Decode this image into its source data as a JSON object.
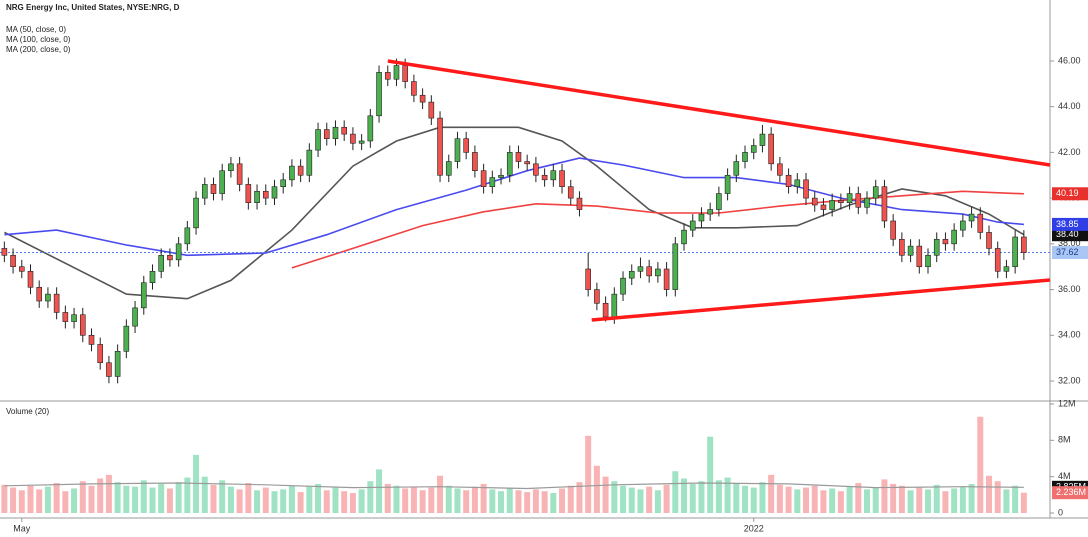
{
  "chart_data": {
    "type": "candlestick",
    "title": "NRG Energy Inc, United States, NYSE:NRG, D",
    "xlim": [
      -0.5,
      120
    ],
    "xticks": [
      {
        "value": 2,
        "label": "May"
      },
      {
        "value": 86,
        "label": "2022"
      }
    ],
    "ylim": [
      31.17,
      48.01
    ],
    "yticks": [
      {
        "value": 32,
        "label": "32.00"
      },
      {
        "value": 34,
        "label": "34.00"
      },
      {
        "value": 36,
        "label": "36.00"
      },
      {
        "value": 38,
        "label": "38.00"
      },
      {
        "value": 40,
        "label": "40.00"
      },
      {
        "value": 42,
        "label": "42.00"
      },
      {
        "value": 44,
        "label": "44.00"
      },
      {
        "value": 46,
        "label": "46.00"
      }
    ],
    "up_color": "#4caf50",
    "down_color": "#ef5350",
    "last_price_color": "#3f6fe8",
    "ohlc": [
      [
        37.8,
        38.1,
        37.2,
        37.5
      ],
      [
        37.5,
        37.8,
        36.7,
        37.0
      ],
      [
        37.0,
        37.3,
        36.5,
        36.8
      ],
      [
        36.8,
        37.1,
        35.8,
        36.1
      ],
      [
        36.1,
        36.4,
        35.2,
        35.5
      ],
      [
        35.5,
        36.1,
        35.2,
        35.8
      ],
      [
        35.8,
        36.1,
        34.7,
        35.0
      ],
      [
        35.0,
        35.3,
        34.3,
        34.6
      ],
      [
        34.6,
        35.2,
        34.3,
        34.9
      ],
      [
        34.9,
        35.2,
        33.7,
        34.0
      ],
      [
        34.0,
        34.3,
        33.3,
        33.6
      ],
      [
        33.6,
        33.9,
        32.5,
        32.8
      ],
      [
        32.8,
        33.1,
        31.9,
        32.2
      ],
      [
        32.2,
        33.6,
        31.9,
        33.3
      ],
      [
        33.3,
        34.7,
        33.0,
        34.4
      ],
      [
        34.4,
        35.5,
        34.1,
        35.2
      ],
      [
        35.2,
        36.6,
        34.9,
        36.3
      ],
      [
        36.3,
        37.1,
        36.0,
        36.8
      ],
      [
        36.8,
        37.8,
        36.5,
        37.5
      ],
      [
        37.5,
        37.8,
        37.0,
        37.3
      ],
      [
        37.3,
        38.3,
        37.0,
        38.0
      ],
      [
        38.0,
        39.0,
        37.7,
        38.7
      ],
      [
        38.7,
        40.3,
        38.4,
        40.0
      ],
      [
        40.0,
        40.9,
        39.7,
        40.6
      ],
      [
        40.6,
        40.9,
        39.9,
        40.2
      ],
      [
        40.2,
        41.5,
        39.9,
        41.2
      ],
      [
        41.2,
        41.8,
        40.9,
        41.5
      ],
      [
        41.5,
        41.8,
        40.3,
        40.6
      ],
      [
        40.6,
        40.9,
        39.5,
        39.8
      ],
      [
        39.8,
        40.6,
        39.5,
        40.3
      ],
      [
        40.3,
        40.6,
        39.7,
        40.0
      ],
      [
        40.0,
        40.8,
        39.7,
        40.5
      ],
      [
        40.5,
        41.1,
        40.2,
        40.8
      ],
      [
        40.8,
        41.7,
        40.5,
        41.4
      ],
      [
        41.4,
        41.7,
        40.7,
        41.0
      ],
      [
        41.0,
        42.4,
        40.7,
        42.1
      ],
      [
        42.1,
        43.3,
        41.8,
        43.0
      ],
      [
        43.0,
        43.3,
        42.3,
        42.6
      ],
      [
        42.6,
        43.4,
        42.3,
        43.1
      ],
      [
        43.1,
        43.4,
        42.5,
        42.8
      ],
      [
        42.8,
        43.1,
        42.1,
        42.4
      ],
      [
        42.4,
        42.8,
        42.1,
        42.5
      ],
      [
        42.5,
        43.9,
        42.2,
        43.6
      ],
      [
        43.6,
        45.8,
        43.3,
        45.5
      ],
      [
        45.5,
        45.8,
        44.9,
        45.2
      ],
      [
        45.2,
        46.1,
        44.9,
        45.8
      ],
      [
        45.8,
        46.1,
        44.8,
        45.1
      ],
      [
        45.1,
        45.4,
        44.2,
        44.5
      ],
      [
        44.5,
        44.8,
        43.9,
        44.2
      ],
      [
        44.2,
        44.5,
        43.2,
        43.5
      ],
      [
        43.5,
        43.8,
        40.7,
        41.0
      ],
      [
        41.0,
        41.9,
        40.7,
        41.6
      ],
      [
        41.6,
        42.9,
        41.3,
        42.6
      ],
      [
        42.6,
        42.9,
        41.7,
        42.0
      ],
      [
        42.0,
        42.3,
        40.9,
        41.2
      ],
      [
        41.2,
        41.5,
        40.2,
        40.5
      ],
      [
        40.5,
        41.2,
        40.2,
        40.9
      ],
      [
        40.9,
        41.3,
        40.6,
        41.0
      ],
      [
        41.0,
        42.3,
        40.7,
        42.0
      ],
      [
        42.0,
        42.3,
        41.3,
        41.6
      ],
      [
        41.6,
        41.9,
        41.2,
        41.5
      ],
      [
        41.5,
        41.8,
        40.7,
        41.0
      ],
      [
        41.0,
        41.3,
        40.5,
        40.8
      ],
      [
        40.8,
        41.5,
        40.5,
        41.2
      ],
      [
        41.2,
        41.5,
        40.2,
        40.5
      ],
      [
        40.5,
        40.8,
        39.7,
        40.0
      ],
      [
        40.0,
        40.3,
        39.2,
        39.5
      ],
      [
        36.9,
        37.6,
        35.7,
        36.0
      ],
      [
        36.0,
        36.3,
        35.1,
        35.4
      ],
      [
        35.4,
        35.7,
        34.6,
        34.8
      ],
      [
        34.8,
        36.1,
        34.5,
        35.8
      ],
      [
        35.8,
        36.8,
        35.5,
        36.5
      ],
      [
        36.5,
        37.1,
        36.2,
        36.8
      ],
      [
        36.8,
        37.4,
        36.5,
        37.0
      ],
      [
        37.0,
        37.3,
        36.3,
        36.6
      ],
      [
        36.6,
        37.2,
        36.3,
        36.9
      ],
      [
        36.9,
        37.2,
        35.7,
        36.0
      ],
      [
        36.0,
        38.3,
        35.7,
        38.0
      ],
      [
        38.0,
        38.9,
        37.7,
        38.6
      ],
      [
        38.6,
        39.3,
        38.3,
        39.0
      ],
      [
        39.0,
        39.6,
        38.7,
        39.3
      ],
      [
        39.3,
        39.8,
        39.0,
        39.5
      ],
      [
        39.5,
        40.5,
        39.2,
        40.2
      ],
      [
        40.2,
        41.3,
        39.9,
        41.0
      ],
      [
        41.0,
        41.9,
        40.7,
        41.6
      ],
      [
        41.6,
        42.3,
        41.3,
        42.0
      ],
      [
        42.0,
        42.6,
        41.7,
        42.3
      ],
      [
        42.3,
        43.2,
        42.0,
        42.8
      ],
      [
        42.8,
        43.1,
        41.2,
        41.5
      ],
      [
        41.5,
        41.8,
        40.7,
        41.0
      ],
      [
        41.0,
        41.3,
        40.2,
        40.5
      ],
      [
        40.5,
        41.1,
        40.2,
        40.8
      ],
      [
        40.8,
        41.1,
        39.7,
        40.0
      ],
      [
        40.0,
        40.3,
        39.4,
        39.7
      ],
      [
        39.7,
        40.0,
        39.2,
        39.5
      ],
      [
        39.5,
        40.2,
        39.2,
        39.9
      ],
      [
        39.9,
        40.2,
        39.5,
        39.8
      ],
      [
        39.8,
        40.5,
        39.5,
        40.2
      ],
      [
        40.2,
        40.5,
        39.3,
        39.6
      ],
      [
        39.6,
        40.3,
        39.3,
        40.0
      ],
      [
        40.0,
        40.8,
        39.7,
        40.5
      ],
      [
        40.5,
        40.8,
        38.7,
        39.0
      ],
      [
        39.0,
        39.3,
        37.9,
        38.2
      ],
      [
        38.2,
        38.5,
        37.2,
        37.5
      ],
      [
        37.5,
        38.2,
        37.2,
        37.9
      ],
      [
        37.9,
        38.2,
        36.7,
        37.0
      ],
      [
        37.0,
        37.8,
        36.7,
        37.5
      ],
      [
        37.5,
        38.5,
        37.2,
        38.2
      ],
      [
        38.2,
        38.5,
        37.7,
        38.0
      ],
      [
        38.0,
        38.9,
        37.7,
        38.6
      ],
      [
        38.6,
        39.3,
        38.3,
        39.0
      ],
      [
        39.0,
        39.6,
        38.7,
        39.3
      ],
      [
        39.3,
        39.6,
        38.2,
        38.5
      ],
      [
        38.5,
        38.8,
        37.5,
        37.8
      ],
      [
        37.8,
        38.1,
        36.5,
        36.8
      ],
      [
        36.8,
        37.3,
        36.5,
        37.0
      ],
      [
        37.0,
        38.6,
        36.7,
        38.3
      ],
      [
        38.3,
        38.6,
        37.3,
        37.62
      ]
    ],
    "series": [
      {
        "name": "MA (50, close, 0)",
        "color": "#555555",
        "label_bg": "#111111",
        "last_label": "38.40",
        "x": [
          0,
          14,
          21,
          26,
          33,
          40,
          45,
          50,
          59,
          64,
          68,
          74,
          79,
          84,
          91,
          97,
          103,
          108,
          113,
          117
        ],
        "values": [
          38.5,
          35.8,
          35.6,
          36.4,
          38.6,
          41.4,
          42.5,
          43.1,
          43.1,
          42.5,
          41.4,
          39.5,
          38.7,
          38.7,
          38.8,
          39.7,
          40.4,
          40.1,
          39.3,
          38.4
        ]
      },
      {
        "name": "MA (100, close, 0)",
        "color": "#4a4af0",
        "label_bg": "#2f3fe8",
        "last_label": "38.85",
        "x": [
          0,
          6,
          14,
          21,
          30,
          37,
          45,
          53,
          60,
          66,
          71,
          78,
          84,
          90,
          96,
          103,
          110,
          114,
          117
        ],
        "values": [
          38.4,
          38.6,
          37.95,
          37.5,
          37.6,
          38.4,
          39.5,
          40.35,
          41.2,
          41.75,
          41.45,
          40.9,
          40.9,
          40.6,
          40.0,
          39.5,
          39.3,
          38.95,
          38.85
        ]
      },
      {
        "name": "MA (200, close, 0)",
        "color": "#f04040",
        "label_bg": "#e8302c",
        "last_label": "40.19",
        "x": [
          33,
          40,
          48,
          55,
          61,
          68,
          75,
          82,
          89,
          96,
          103,
          110,
          117
        ],
        "values": [
          36.95,
          37.8,
          38.8,
          39.4,
          39.75,
          39.65,
          39.35,
          39.35,
          39.65,
          39.9,
          40.1,
          40.3,
          40.19
        ]
      }
    ],
    "trendlines": {
      "color": "#ff1a1a",
      "lines": [
        {
          "x": [
            44,
            120
          ],
          "values": [
            46.0,
            41.45
          ]
        },
        {
          "x": [
            67.4,
            120
          ],
          "values": [
            34.67,
            36.42
          ]
        }
      ]
    },
    "volume": {
      "title": "Volume (20)",
      "ylim": [
        0,
        12
      ],
      "yticks": [
        {
          "value": 12,
          "label": "12M"
        },
        {
          "value": 8,
          "label": "8M"
        },
        {
          "value": 4,
          "label": "4M"
        },
        0
      ],
      "up_color": "#9fe3c4",
      "down_color": "#f8b4b4",
      "last_label": "2.236M",
      "values": [
        3.1,
        2.8,
        2.5,
        3.0,
        2.6,
        2.9,
        3.3,
        2.4,
        2.7,
        3.5,
        3.0,
        3.8,
        4.2,
        3.4,
        3.0,
        2.9,
        3.6,
        2.8,
        3.2,
        2.7,
        3.4,
        3.9,
        6.4,
        4.0,
        3.1,
        3.6,
        2.9,
        2.6,
        3.3,
        2.5,
        2.8,
        2.4,
        2.6,
        3.0,
        2.3,
        2.9,
        3.2,
        2.5,
        2.8,
        2.4,
        2.2,
        2.6,
        3.5,
        4.8,
        3.2,
        3.0,
        2.7,
        2.9,
        2.5,
        2.8,
        4.1,
        3.0,
        2.7,
        2.5,
        2.9,
        3.2,
        2.6,
        2.4,
        2.8,
        2.5,
        2.3,
        2.6,
        2.4,
        2.2,
        2.7,
        3.0,
        3.4,
        8.5,
        5.2,
        4.0,
        3.5,
        3.0,
        2.8,
        2.6,
        2.9,
        2.5,
        3.1,
        4.6,
        3.8,
        3.2,
        3.5,
        8.4,
        3.6,
        3.9,
        3.3,
        3.0,
        2.8,
        3.4,
        4.2,
        3.1,
        2.9,
        2.6,
        2.8,
        3.0,
        2.5,
        2.7,
        2.4,
        2.9,
        3.3,
        2.6,
        2.8,
        3.7,
        3.2,
        3.0,
        2.5,
        2.8,
        2.6,
        3.1,
        2.4,
        2.7,
        2.9,
        3.2,
        10.6,
        4.1,
        3.5,
        2.6,
        3.0,
        2.236
      ],
      "ma": {
        "color": "#9a9a9a",
        "last_label": "2.825M",
        "x": [
          0,
          10,
          20,
          30,
          40,
          50,
          60,
          70,
          80,
          90,
          100,
          110,
          117
        ],
        "values": [
          3.0,
          3.2,
          3.3,
          3.1,
          2.8,
          2.9,
          2.7,
          3.1,
          3.3,
          3.2,
          2.8,
          2.9,
          2.825
        ]
      }
    }
  }
}
